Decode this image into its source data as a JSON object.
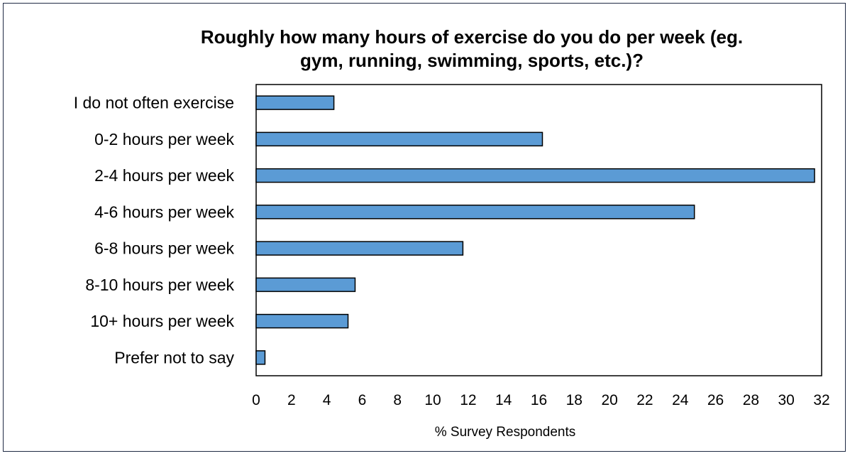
{
  "chart_data": {
    "type": "bar",
    "orientation": "horizontal",
    "title": "Roughly how many hours of exercise do you do per week (eg.\ngym, running, swimming, sports, etc.)?",
    "xlabel": "% Survey Respondents",
    "ylabel": "",
    "xlim": [
      0,
      32
    ],
    "xticks": [
      0,
      2,
      4,
      6,
      8,
      10,
      12,
      14,
      16,
      18,
      20,
      22,
      24,
      26,
      28,
      30,
      32
    ],
    "categories": [
      "I do not often exercise",
      "0-2 hours per week",
      "2-4 hours per week",
      "4-6 hours per week",
      "6-8 hours per week",
      "8-10 hours per week",
      "10+ hours per week",
      "Prefer not to say"
    ],
    "values": [
      4.4,
      16.2,
      31.6,
      24.8,
      11.7,
      5.6,
      5.2,
      0.5
    ],
    "bar_color": "#5b9bd5",
    "bar_edge_color": "#000000",
    "grid": false,
    "legend": "none"
  }
}
